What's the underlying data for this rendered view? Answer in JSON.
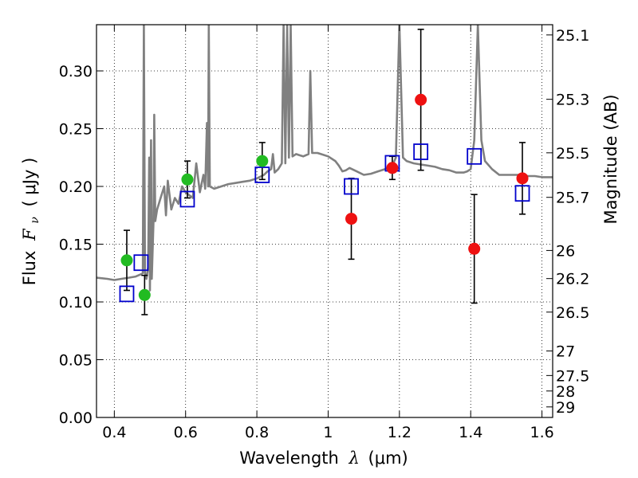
{
  "chart_data": {
    "type": "scatter",
    "xlabel": "Wavelength",
    "xlabel_symbol": "λ",
    "xlabel_unit": "(μm)",
    "ylabel": "Flux",
    "ylabel_symbol": "F",
    "ylabel_subscript": "ν",
    "ylabel_unit": "( μJy )",
    "y2label": "Magnitude (AB)",
    "xlim": [
      0.35,
      1.63
    ],
    "ylim": [
      0.0,
      0.34
    ],
    "grid": true,
    "x_ticks": [
      0.4,
      0.6,
      0.8,
      1.0,
      1.2,
      1.4,
      1.6
    ],
    "x_tick_labels": [
      "0.4",
      "0.6",
      "0.8",
      "1",
      "1.2",
      "1.4",
      "1.6"
    ],
    "y_ticks": [
      0.0,
      0.05,
      0.1,
      0.15,
      0.2,
      0.25,
      0.3
    ],
    "y_tick_labels": [
      "0.00",
      "0.05",
      "0.10",
      "0.15",
      "0.20",
      "0.25",
      "0.30"
    ],
    "y2_ticks": [
      {
        "label": "25.1",
        "mag": 25.1
      },
      {
        "label": "25.3",
        "mag": 25.3
      },
      {
        "label": "25.5",
        "mag": 25.5
      },
      {
        "label": "25.7",
        "mag": 25.7
      },
      {
        "label": "26",
        "mag": 26.0
      },
      {
        "label": "26.2",
        "mag": 26.2
      },
      {
        "label": "26.5",
        "mag": 26.5
      },
      {
        "label": "27",
        "mag": 27.0
      },
      {
        "label": "27.5",
        "mag": 27.5
      },
      {
        "label": "28",
        "mag": 28.0
      },
      {
        "label": "29",
        "mag": 29.0
      }
    ],
    "series": [
      {
        "name": "model_spectrum",
        "kind": "line",
        "color": "#808080",
        "points": [
          [
            0.35,
            0.121
          ],
          [
            0.38,
            0.12
          ],
          [
            0.4,
            0.119
          ],
          [
            0.42,
            0.12
          ],
          [
            0.44,
            0.121
          ],
          [
            0.46,
            0.122
          ],
          [
            0.475,
            0.124
          ],
          [
            0.48,
            0.125
          ],
          [
            0.483,
            0.34
          ],
          [
            0.486,
            0.125
          ],
          [
            0.49,
            0.12
          ],
          [
            0.495,
            0.13
          ],
          [
            0.498,
            0.225
          ],
          [
            0.5,
            0.11
          ],
          [
            0.503,
            0.24
          ],
          [
            0.505,
            0.12
          ],
          [
            0.51,
            0.17
          ],
          [
            0.512,
            0.262
          ],
          [
            0.515,
            0.17
          ],
          [
            0.52,
            0.18
          ],
          [
            0.53,
            0.19
          ],
          [
            0.54,
            0.2
          ],
          [
            0.545,
            0.175
          ],
          [
            0.55,
            0.205
          ],
          [
            0.56,
            0.18
          ],
          [
            0.57,
            0.19
          ],
          [
            0.58,
            0.185
          ],
          [
            0.59,
            0.2
          ],
          [
            0.6,
            0.195
          ],
          [
            0.62,
            0.19
          ],
          [
            0.63,
            0.22
          ],
          [
            0.64,
            0.195
          ],
          [
            0.65,
            0.21
          ],
          [
            0.655,
            0.198
          ],
          [
            0.66,
            0.255
          ],
          [
            0.663,
            0.2
          ],
          [
            0.665,
            0.34
          ],
          [
            0.668,
            0.2
          ],
          [
            0.68,
            0.198
          ],
          [
            0.7,
            0.2
          ],
          [
            0.72,
            0.202
          ],
          [
            0.74,
            0.203
          ],
          [
            0.76,
            0.204
          ],
          [
            0.78,
            0.205
          ],
          [
            0.8,
            0.207
          ],
          [
            0.82,
            0.21
          ],
          [
            0.83,
            0.213
          ],
          [
            0.84,
            0.215
          ],
          [
            0.845,
            0.228
          ],
          [
            0.85,
            0.212
          ],
          [
            0.86,
            0.215
          ],
          [
            0.87,
            0.22
          ],
          [
            0.875,
            0.34
          ],
          [
            0.88,
            0.22
          ],
          [
            0.885,
            0.34
          ],
          [
            0.89,
            0.225
          ],
          [
            0.895,
            0.34
          ],
          [
            0.9,
            0.226
          ],
          [
            0.91,
            0.228
          ],
          [
            0.92,
            0.227
          ],
          [
            0.93,
            0.226
          ],
          [
            0.945,
            0.228
          ],
          [
            0.95,
            0.3
          ],
          [
            0.955,
            0.229
          ],
          [
            0.97,
            0.229
          ],
          [
            0.98,
            0.228
          ],
          [
            1.0,
            0.226
          ],
          [
            1.02,
            0.222
          ],
          [
            1.03,
            0.218
          ],
          [
            1.04,
            0.213
          ],
          [
            1.05,
            0.214
          ],
          [
            1.06,
            0.216
          ],
          [
            1.08,
            0.213
          ],
          [
            1.1,
            0.21
          ],
          [
            1.12,
            0.211
          ],
          [
            1.14,
            0.213
          ],
          [
            1.16,
            0.215
          ],
          [
            1.18,
            0.218
          ],
          [
            1.19,
            0.225
          ],
          [
            1.2,
            0.34
          ],
          [
            1.21,
            0.225
          ],
          [
            1.22,
            0.222
          ],
          [
            1.24,
            0.22
          ],
          [
            1.26,
            0.219
          ],
          [
            1.28,
            0.218
          ],
          [
            1.3,
            0.217
          ],
          [
            1.32,
            0.215
          ],
          [
            1.34,
            0.214
          ],
          [
            1.36,
            0.212
          ],
          [
            1.38,
            0.212
          ],
          [
            1.39,
            0.213
          ],
          [
            1.4,
            0.215
          ],
          [
            1.41,
            0.24
          ],
          [
            1.42,
            0.34
          ],
          [
            1.43,
            0.24
          ],
          [
            1.44,
            0.222
          ],
          [
            1.46,
            0.215
          ],
          [
            1.48,
            0.21
          ],
          [
            1.5,
            0.21
          ],
          [
            1.52,
            0.21
          ],
          [
            1.54,
            0.21
          ],
          [
            1.56,
            0.209
          ],
          [
            1.58,
            0.209
          ],
          [
            1.6,
            0.208
          ],
          [
            1.63,
            0.208
          ]
        ]
      },
      {
        "name": "model_photometry",
        "kind": "open-square",
        "color": "#0000cc",
        "x": [
          0.435,
          0.475,
          0.605,
          0.815,
          1.065,
          1.18,
          1.26,
          1.41,
          1.545
        ],
        "y": [
          0.107,
          0.134,
          0.189,
          0.21,
          0.2,
          0.22,
          0.23,
          0.226,
          0.194
        ]
      },
      {
        "name": "observed_green",
        "kind": "filled-circle",
        "color": "#22bb22",
        "x": [
          0.435,
          0.485,
          0.605,
          0.815
        ],
        "y": [
          0.136,
          0.106,
          0.206,
          0.222
        ],
        "yerr": [
          0.026,
          0.017,
          0.016,
          0.016
        ]
      },
      {
        "name": "observed_red",
        "kind": "filled-circle",
        "color": "#ee1111",
        "x": [
          1.065,
          1.18,
          1.26,
          1.41,
          1.545
        ],
        "y": [
          0.172,
          0.216,
          0.275,
          0.146,
          0.207
        ],
        "yerr": [
          0.035,
          0.01,
          0.061,
          0.047,
          0.031
        ]
      }
    ]
  }
}
